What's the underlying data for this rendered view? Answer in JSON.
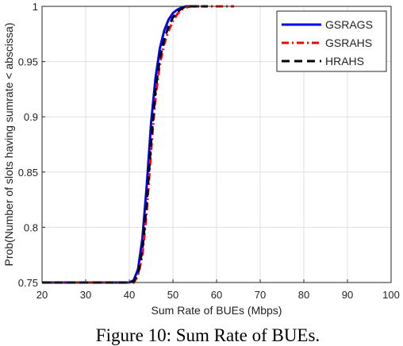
{
  "caption": "Figure 10: Sum Rate of BUEs.",
  "chart_data": {
    "type": "line",
    "title": "",
    "xlabel": "Sum Rate of BUEs (Mbps)",
    "ylabel": "Prob(Number of slots having sumrate < abscissa)",
    "xlim": [
      20,
      100
    ],
    "ylim": [
      0.75,
      1
    ],
    "xticks": [
      "20",
      "30",
      "40",
      "50",
      "60",
      "70",
      "80",
      "90",
      "100"
    ],
    "yticks": [
      "0.75",
      "0.8",
      "0.85",
      "0.9",
      "0.95",
      "1"
    ],
    "grid": true,
    "legend_position": "top-right",
    "series": [
      {
        "name": "GSRAGS",
        "color": "#0000ff",
        "line_style": "solid",
        "x": [
          20,
          40,
          41,
          42,
          43,
          44,
          45,
          46,
          47,
          48,
          49,
          50,
          51,
          52,
          53,
          54,
          55,
          56
        ],
        "y": [
          0.75,
          0.75,
          0.752,
          0.762,
          0.79,
          0.838,
          0.895,
          0.935,
          0.962,
          0.978,
          0.988,
          0.994,
          0.997,
          0.999,
          1,
          1,
          1,
          1
        ]
      },
      {
        "name": "GSRAHS",
        "color": "#ff0000",
        "line_style": "dashdot",
        "x": [
          20,
          40,
          41,
          42,
          43,
          44,
          45,
          46,
          47,
          48,
          49,
          50,
          51,
          52,
          53,
          54,
          55,
          56,
          58,
          60,
          62,
          64
        ],
        "y": [
          0.75,
          0.75,
          0.75,
          0.756,
          0.775,
          0.815,
          0.87,
          0.918,
          0.948,
          0.966,
          0.978,
          0.987,
          0.993,
          0.997,
          0.999,
          1,
          1,
          1,
          1,
          1,
          1,
          1
        ]
      },
      {
        "name": "HRAHS",
        "color": "#000000",
        "line_style": "dashed",
        "x": [
          20,
          40,
          41,
          42,
          43,
          44,
          45,
          46,
          47,
          48,
          49,
          50,
          51,
          52,
          53,
          54,
          55,
          56,
          58
        ],
        "y": [
          0.75,
          0.75,
          0.751,
          0.758,
          0.78,
          0.822,
          0.878,
          0.924,
          0.953,
          0.97,
          0.982,
          0.99,
          0.995,
          0.998,
          1,
          1,
          1,
          1,
          1
        ]
      }
    ]
  }
}
